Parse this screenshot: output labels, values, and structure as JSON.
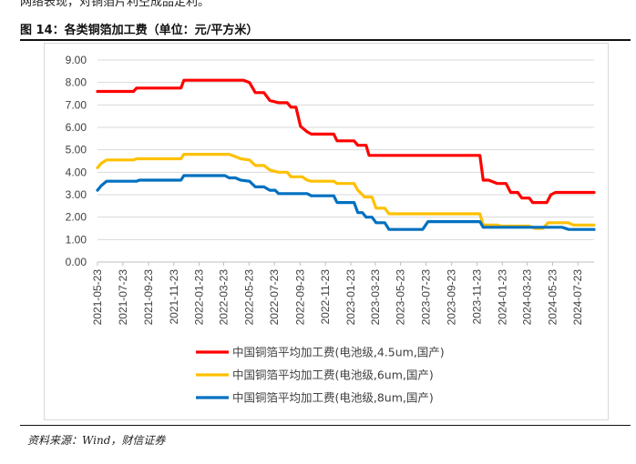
{
  "header": {
    "cut_text": "网络表现，对铜箔片利空成品定利。",
    "figure_title": "图 14：各类铜箔加工费（单位：元/平方米）"
  },
  "footer": {
    "source": "资料来源：Wind，财信证券"
  },
  "colors": {
    "series_red": "#ff0000",
    "series_yellow": "#ffc000",
    "series_blue": "#0070c0",
    "grid": "#d9d9d9",
    "axis_text": "#404040"
  },
  "chart_data": {
    "type": "line",
    "title": "各类铜箔加工费（单位：元/平方米）",
    "xlabel": "",
    "ylabel": "",
    "ylim": [
      0,
      9
    ],
    "yticks": [
      "0.00",
      "1.00",
      "2.00",
      "3.00",
      "4.00",
      "5.00",
      "6.00",
      "7.00",
      "8.00",
      "9.00"
    ],
    "x_range": [
      "2021-05-23",
      "2024-08-31"
    ],
    "x_ticks": [
      "2021-05-23",
      "2021-07-23",
      "2021-09-23",
      "2021-11-23",
      "2022-01-23",
      "2022-03-23",
      "2022-05-23",
      "2022-07-23",
      "2022-09-23",
      "2022-11-23",
      "2023-01-23",
      "2023-03-23",
      "2023-05-23",
      "2023-07-23",
      "2023-09-23",
      "2023-11-23",
      "2024-01-23",
      "2024-03-23",
      "2024-05-23",
      "2024-07-23"
    ],
    "legend_position": "bottom",
    "grid": true,
    "series": [
      {
        "name": "中国铜箔平均加工费(电池级,4.5um,国产)",
        "color": "#ff0000",
        "points": [
          [
            "2021-05-23",
            7.6
          ],
          [
            "2021-08-18",
            7.6
          ],
          [
            "2021-08-25",
            7.75
          ],
          [
            "2021-12-10",
            7.75
          ],
          [
            "2021-12-17",
            8.1
          ],
          [
            "2022-05-10",
            8.1
          ],
          [
            "2022-05-24",
            8.0
          ],
          [
            "2022-06-07",
            7.55
          ],
          [
            "2022-06-28",
            7.55
          ],
          [
            "2022-07-12",
            7.2
          ],
          [
            "2022-08-02",
            7.1
          ],
          [
            "2022-08-23",
            7.1
          ],
          [
            "2022-09-01",
            6.9
          ],
          [
            "2022-09-13",
            6.9
          ],
          [
            "2022-09-24",
            6.05
          ],
          [
            "2022-10-10",
            5.8
          ],
          [
            "2022-10-20",
            5.7
          ],
          [
            "2022-12-13",
            5.7
          ],
          [
            "2022-12-21",
            5.4
          ],
          [
            "2023-01-31",
            5.4
          ],
          [
            "2023-02-09",
            5.2
          ],
          [
            "2023-03-01",
            5.2
          ],
          [
            "2023-03-08",
            4.75
          ],
          [
            "2023-11-30",
            4.75
          ],
          [
            "2023-12-08",
            3.65
          ],
          [
            "2023-12-21",
            3.65
          ],
          [
            "2024-01-11",
            3.5
          ],
          [
            "2024-02-01",
            3.5
          ],
          [
            "2024-02-12",
            3.1
          ],
          [
            "2024-02-29",
            3.1
          ],
          [
            "2024-03-10",
            2.85
          ],
          [
            "2024-03-28",
            2.85
          ],
          [
            "2024-04-05",
            2.65
          ],
          [
            "2024-05-09",
            2.65
          ],
          [
            "2024-05-19",
            3.0
          ],
          [
            "2024-05-30",
            3.1
          ],
          [
            "2024-08-31",
            3.1
          ]
        ]
      },
      {
        "name": "中国铜箔平均加工费(电池级,6um,国产)",
        "color": "#ffc000",
        "points": [
          [
            "2021-05-23",
            4.2
          ],
          [
            "2021-06-01",
            4.4
          ],
          [
            "2021-06-14",
            4.55
          ],
          [
            "2021-08-18",
            4.55
          ],
          [
            "2021-08-25",
            4.6
          ],
          [
            "2021-12-10",
            4.6
          ],
          [
            "2021-12-17",
            4.8
          ],
          [
            "2022-04-05",
            4.8
          ],
          [
            "2022-04-20",
            4.7
          ],
          [
            "2022-05-03",
            4.6
          ],
          [
            "2022-05-24",
            4.55
          ],
          [
            "2022-06-07",
            4.3
          ],
          [
            "2022-06-28",
            4.3
          ],
          [
            "2022-07-12",
            4.1
          ],
          [
            "2022-08-02",
            4.0
          ],
          [
            "2022-08-23",
            4.0
          ],
          [
            "2022-09-01",
            3.8
          ],
          [
            "2022-09-28",
            3.8
          ],
          [
            "2022-10-10",
            3.65
          ],
          [
            "2022-10-20",
            3.6
          ],
          [
            "2022-12-13",
            3.6
          ],
          [
            "2022-12-21",
            3.5
          ],
          [
            "2023-01-31",
            3.5
          ],
          [
            "2023-02-09",
            3.2
          ],
          [
            "2023-02-20",
            3.0
          ],
          [
            "2023-02-25",
            2.9
          ],
          [
            "2023-03-15",
            2.9
          ],
          [
            "2023-03-25",
            2.4
          ],
          [
            "2023-04-15",
            2.4
          ],
          [
            "2023-04-25",
            2.15
          ],
          [
            "2023-11-30",
            2.15
          ],
          [
            "2023-12-08",
            1.65
          ],
          [
            "2024-01-11",
            1.65
          ],
          [
            "2024-01-20",
            1.6
          ],
          [
            "2024-03-28",
            1.6
          ],
          [
            "2024-04-10",
            1.5
          ],
          [
            "2024-04-30",
            1.5
          ],
          [
            "2024-05-12",
            1.75
          ],
          [
            "2024-06-30",
            1.75
          ],
          [
            "2024-07-12",
            1.65
          ],
          [
            "2024-08-31",
            1.65
          ]
        ]
      },
      {
        "name": "中国铜箔平均加工费(电池级,8um,国产)",
        "color": "#0070c0",
        "points": [
          [
            "2021-05-23",
            3.2
          ],
          [
            "2021-06-01",
            3.4
          ],
          [
            "2021-06-14",
            3.6
          ],
          [
            "2021-08-25",
            3.6
          ],
          [
            "2021-09-01",
            3.65
          ],
          [
            "2021-12-10",
            3.65
          ],
          [
            "2021-12-17",
            3.85
          ],
          [
            "2022-03-26",
            3.85
          ],
          [
            "2022-04-05",
            3.75
          ],
          [
            "2022-04-20",
            3.75
          ],
          [
            "2022-05-03",
            3.65
          ],
          [
            "2022-05-24",
            3.6
          ],
          [
            "2022-06-07",
            3.35
          ],
          [
            "2022-06-28",
            3.35
          ],
          [
            "2022-07-12",
            3.2
          ],
          [
            "2022-07-25",
            3.2
          ],
          [
            "2022-08-02",
            3.05
          ],
          [
            "2022-10-10",
            3.05
          ],
          [
            "2022-10-20",
            2.95
          ],
          [
            "2022-12-13",
            2.95
          ],
          [
            "2022-12-21",
            2.65
          ],
          [
            "2023-01-31",
            2.65
          ],
          [
            "2023-02-09",
            2.2
          ],
          [
            "2023-02-20",
            2.2
          ],
          [
            "2023-03-01",
            2.0
          ],
          [
            "2023-03-15",
            2.0
          ],
          [
            "2023-03-25",
            1.75
          ],
          [
            "2023-04-15",
            1.75
          ],
          [
            "2023-04-25",
            1.45
          ],
          [
            "2023-07-15",
            1.45
          ],
          [
            "2023-07-28",
            1.8
          ],
          [
            "2023-11-30",
            1.8
          ],
          [
            "2023-12-08",
            1.55
          ],
          [
            "2024-06-15",
            1.55
          ],
          [
            "2024-07-01",
            1.45
          ],
          [
            "2024-08-31",
            1.45
          ]
        ]
      }
    ]
  }
}
